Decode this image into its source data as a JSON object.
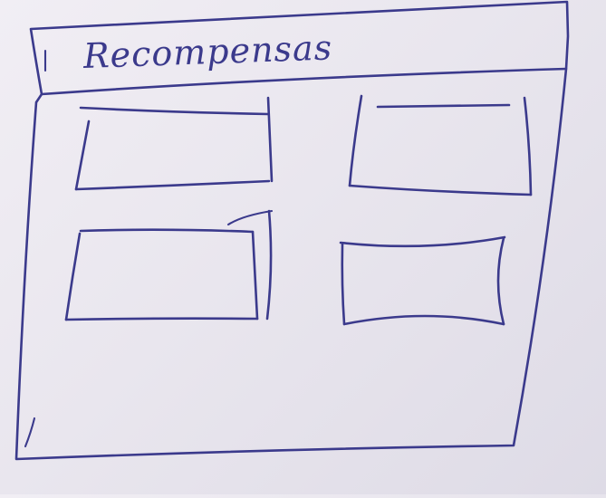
{
  "sketch": {
    "title": "Recompensas"
  }
}
